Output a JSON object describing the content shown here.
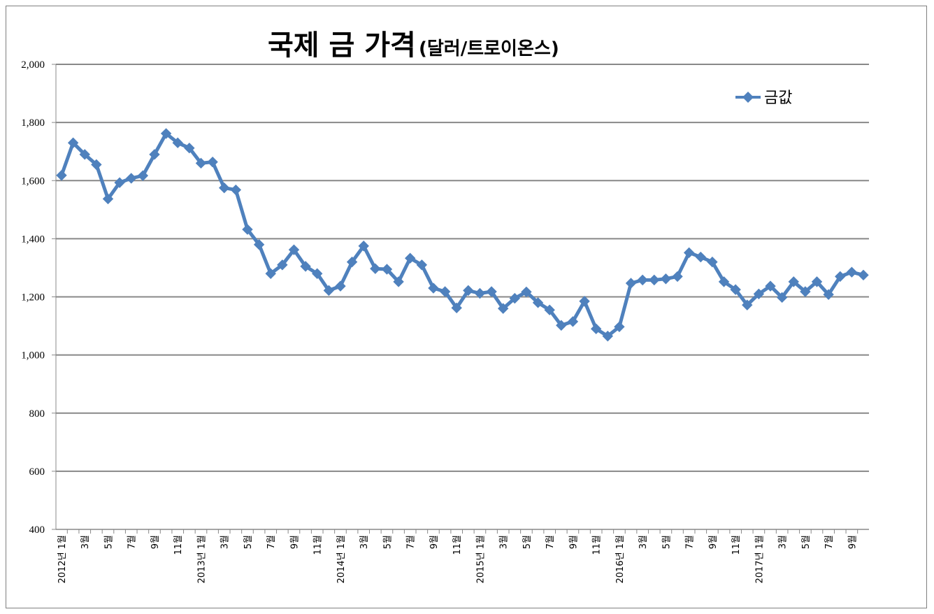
{
  "chart_data": {
    "type": "line",
    "title": "국제 금 가격",
    "subtitle": "(달러/트로이온스)",
    "xlabel": "",
    "ylabel": "",
    "ylim": [
      400,
      2000
    ],
    "yticks": [
      400,
      600,
      800,
      1000,
      1200,
      1400,
      1600,
      1800,
      2000
    ],
    "ytick_labels": [
      "400",
      "600",
      "800",
      "1,000",
      "1,200",
      "1,400",
      "1,600",
      "1,800",
      "2,000"
    ],
    "grid": true,
    "legend": "top-right",
    "series_color": "#4f81bd",
    "grid_color": "#888888",
    "x": [
      "2012-01",
      "2012-02",
      "2012-03",
      "2012-04",
      "2012-05",
      "2012-06",
      "2012-07",
      "2012-08",
      "2012-09",
      "2012-10",
      "2012-11",
      "2012-12",
      "2013-01",
      "2013-02",
      "2013-03",
      "2013-04",
      "2013-05",
      "2013-06",
      "2013-07",
      "2013-08",
      "2013-09",
      "2013-10",
      "2013-11",
      "2013-12",
      "2014-01",
      "2014-02",
      "2014-03",
      "2014-04",
      "2014-05",
      "2014-06",
      "2014-07",
      "2014-08",
      "2014-09",
      "2014-10",
      "2014-11",
      "2014-12",
      "2015-01",
      "2015-02",
      "2015-03",
      "2015-04",
      "2015-05",
      "2015-06",
      "2015-07",
      "2015-08",
      "2015-09",
      "2015-10",
      "2015-11",
      "2015-12",
      "2016-01",
      "2016-02",
      "2016-03",
      "2016-04",
      "2016-05",
      "2016-06",
      "2016-07",
      "2016-08",
      "2016-09",
      "2016-10",
      "2016-11",
      "2016-12",
      "2017-01",
      "2017-02",
      "2017-03",
      "2017-04",
      "2017-05",
      "2017-06",
      "2017-07",
      "2017-08",
      "2017-09",
      "2017-10"
    ],
    "x_tick_labels": [
      "2012년 1월",
      "3월",
      "5월",
      "7월",
      "9월",
      "11월",
      "2013년 1월",
      "3월",
      "5월",
      "7월",
      "9월",
      "11월",
      "2014년 1월",
      "3월",
      "5월",
      "7월",
      "9월",
      "11월",
      "2015년 1월",
      "3월",
      "5월",
      "7월",
      "9월",
      "11월",
      "2016년 1월",
      "3월",
      "5월",
      "7월",
      "9월",
      "11월",
      "2017년 1월",
      "3월",
      "5월",
      "7월",
      "9월"
    ],
    "series": [
      {
        "name": "금값",
        "values": [
          1618,
          1730,
          1690,
          1655,
          1537,
          1593,
          1608,
          1617,
          1690,
          1762,
          1730,
          1712,
          1660,
          1664,
          1575,
          1568,
          1432,
          1380,
          1280,
          1310,
          1362,
          1305,
          1280,
          1222,
          1237,
          1320,
          1375,
          1297,
          1295,
          1252,
          1333,
          1310,
          1230,
          1218,
          1162,
          1222,
          1212,
          1218,
          1160,
          1195,
          1217,
          1180,
          1155,
          1102,
          1115,
          1185,
          1090,
          1065,
          1097,
          1247,
          1258,
          1258,
          1262,
          1270,
          1352,
          1337,
          1320,
          1252,
          1225,
          1172,
          1210,
          1237,
          1198,
          1252,
          1218,
          1252,
          1208,
          1270,
          1285,
          1275
        ]
      }
    ]
  }
}
